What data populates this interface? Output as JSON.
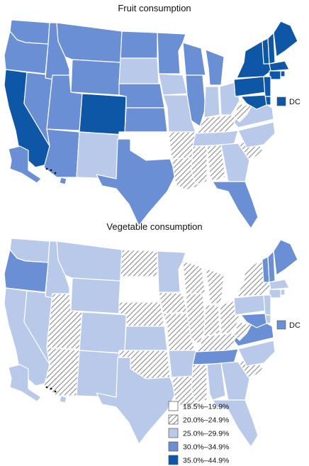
{
  "titles": {
    "fruit": "Fruit consumption",
    "vegetable": "Vegetable consumption"
  },
  "dc_label": "DC",
  "colors": {
    "white": "#ffffff",
    "hatch": "#9a9a9a",
    "light": "#b8c9ea",
    "medium": "#6b8fd4",
    "dark": "#0e57a7",
    "border": "#ffffff",
    "legend_border": "#555555"
  },
  "legend": [
    {
      "label": "15.5%–19.9%",
      "class": "white"
    },
    {
      "label": "20.0%–24.9%",
      "class": "hatch"
    },
    {
      "label": "25.0%–29.9%",
      "class": "light"
    },
    {
      "label": "30.0%–34.9%",
      "class": "medium"
    },
    {
      "label": "35.0%–44.9%",
      "class": "dark"
    }
  ],
  "fruit_map": {
    "WA": "medium",
    "OR": "medium",
    "CA": "dark",
    "NV": "medium",
    "ID": "medium",
    "MT": "medium",
    "WY": "medium",
    "UT": "medium",
    "CO": "dark",
    "AZ": "medium",
    "NM": "light",
    "ND": "medium",
    "SD": "light",
    "NE": "medium",
    "KS": "medium",
    "OK": "white",
    "TX": "medium",
    "MN": "medium",
    "IA": "light",
    "MO": "light",
    "AR": "hatch",
    "LA": "hatch",
    "WI": "medium",
    "IL": "medium",
    "MI": "medium",
    "IN": "light",
    "OH": "light",
    "KY": "hatch",
    "TN": "light",
    "MS": "hatch",
    "AL": "hatch",
    "GA": "light",
    "FL": "medium",
    "SC": "hatch",
    "NC": "light",
    "VA": "light",
    "WV": "hatch",
    "PA": "dark",
    "NY": "dark",
    "VT": "dark",
    "NH": "dark",
    "ME": "dark",
    "MA": "dark",
    "RI": "dark",
    "CT": "dark",
    "NJ": "dark",
    "DE": "dark",
    "MD": "dark",
    "AK": "medium",
    "HI": "medium",
    "DC": "dark"
  },
  "vegetable_map": {
    "WA": "light",
    "OR": "medium",
    "CA": "light",
    "NV": "light",
    "ID": "light",
    "MT": "light",
    "WY": "light",
    "UT": "hatch",
    "CO": "light",
    "AZ": "hatch",
    "NM": "light",
    "ND": "hatch",
    "SD": "white",
    "NE": "hatch",
    "KS": "light",
    "OK": "hatch",
    "TX": "light",
    "MN": "light",
    "IA": "hatch",
    "MO": "hatch",
    "AR": "light",
    "LA": "hatch",
    "WI": "hatch",
    "IL": "hatch",
    "MI": "hatch",
    "IN": "hatch",
    "OH": "hatch",
    "KY": "hatch",
    "TN": "medium",
    "MS": "hatch",
    "AL": "light",
    "GA": "light",
    "FL": "light",
    "SC": "hatch",
    "NC": "light",
    "VA": "medium",
    "WV": "hatch",
    "PA": "light",
    "NY": "hatch",
    "VT": "medium",
    "NH": "medium",
    "ME": "medium",
    "MA": "light",
    "RI": "light",
    "CT": "light",
    "NJ": "light",
    "DE": "light",
    "MD": "medium",
    "AK": "light",
    "HI": "light",
    "DC": "medium"
  }
}
